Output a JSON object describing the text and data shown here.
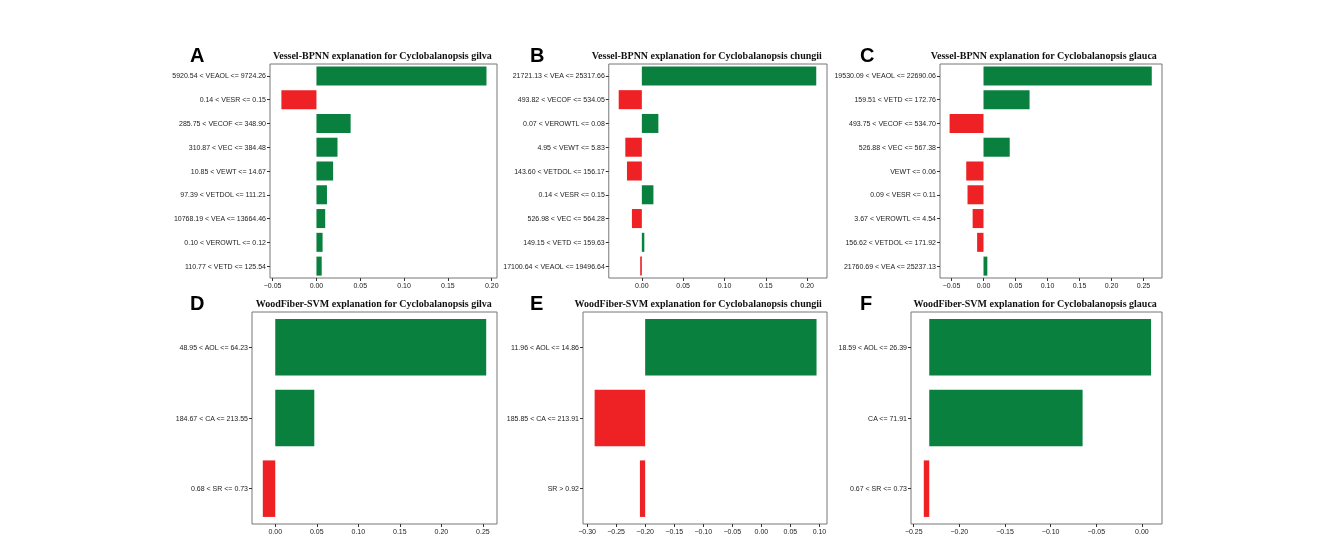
{
  "chart_data": [
    {
      "type": "bar",
      "orientation": "horizontal",
      "title": "Vessel-BPNN explanation for Cyclobalanopsis gilva",
      "annotations": [
        "A"
      ],
      "categories": [
        "5920.54 < VEAOL <= 9724.26",
        "0.14 < VESR <= 0.15",
        "285.75 < VECOF <= 348.90",
        "310.87 < VEC <= 384.48",
        "10.85 < VEWT <= 14.67",
        "97.39 < VETDOL <= 111.21",
        "10768.19 < VEA <= 13664.46",
        "0.10 < VEROWTL <= 0.12",
        "110.77 < VETD <= 125.54"
      ],
      "values": [
        0.194,
        -0.04,
        0.039,
        0.024,
        0.019,
        0.012,
        0.01,
        0.007,
        0.006
      ],
      "colors": [
        "#0a803f",
        "#ee2225",
        "#0a803f",
        "#0a803f",
        "#0a803f",
        "#0a803f",
        "#0a803f",
        "#0a803f",
        "#0a803f"
      ],
      "xlim": [
        -0.053,
        0.206
      ],
      "xticks": [
        {
          "value": -0.05,
          "label": "−0.05"
        },
        {
          "value": 0,
          "label": "0.00"
        },
        0.05,
        {
          "value": 0.1,
          "label": "0.10"
        },
        0.15,
        {
          "value": 0.2,
          "label": "0.20"
        }
      ],
      "grid": false
    },
    {
      "type": "bar",
      "orientation": "horizontal",
      "title": "Vessel-BPNN explanation for Cyclobalanopsis chungii",
      "annotations": [
        "B"
      ],
      "categories": [
        "21721.13 < VEA <= 25317.66",
        "493.82 < VECOF <= 534.05",
        "0.07 < VEROWTL <= 0.08",
        "4.95 < VEWT <= 5.83",
        "143.60 < VETDOL <= 156.17",
        "0.14 < VESR <= 0.15",
        "526.98 < VEC <= 564.28",
        "149.15 < VETD <= 159.63",
        "17100.64 < VEAOL <= 19496.64"
      ],
      "values": [
        0.211,
        -0.028,
        0.02,
        -0.02,
        -0.018,
        0.014,
        -0.012,
        0.003,
        -0.002
      ],
      "colors": [
        "#0a803f",
        "#ee2225",
        "#0a803f",
        "#ee2225",
        "#ee2225",
        "#0a803f",
        "#ee2225",
        "#0a803f",
        "#ee2225"
      ],
      "xlim": [
        -0.04,
        0.224
      ],
      "xticks": [
        {
          "value": 0,
          "label": "0.00"
        },
        0.05,
        {
          "value": 0.1,
          "label": "0.10"
        },
        0.15,
        {
          "value": 0.2,
          "label": "0.20"
        }
      ],
      "grid": false
    },
    {
      "type": "bar",
      "orientation": "horizontal",
      "title": "Vessel-BPNN explanation for Cyclobalanopsis glauca",
      "annotations": [
        "C"
      ],
      "categories": [
        "19530.09 < VEAOL <= 22690.06",
        "159.51 < VETD <= 172.76",
        "493.75 < VECOF <= 534.70",
        "526.88 < VEC <= 567.38",
        "VEWT <= 0.06",
        "0.09 < VESR <= 0.11",
        "3.67 < VEROWTL <= 4.54",
        "156.62 < VETDOL <= 171.92",
        "21760.69 < VEA <= 25237.13"
      ],
      "values": [
        0.263,
        0.072,
        -0.053,
        0.041,
        -0.027,
        -0.025,
        -0.017,
        -0.01,
        0.006
      ],
      "colors": [
        "#0a803f",
        "#0a803f",
        "#ee2225",
        "#0a803f",
        "#ee2225",
        "#ee2225",
        "#ee2225",
        "#ee2225",
        "#0a803f"
      ],
      "xlim": [
        -0.068,
        0.279
      ],
      "xticks": [
        {
          "value": -0.05,
          "label": "−0.05"
        },
        {
          "value": 0,
          "label": "0.00"
        },
        0.05,
        {
          "value": 0.1,
          "label": "0.10"
        },
        0.15,
        {
          "value": 0.2,
          "label": "0.20"
        },
        0.25
      ],
      "grid": false
    },
    {
      "type": "bar",
      "orientation": "horizontal",
      "title": "WoodFiber-SVM explanation for Cyclobalanopsis gilva",
      "annotations": [
        "D"
      ],
      "categories": [
        "48.95 < AOL <= 64.23",
        "184.67 < CA <= 213.55",
        "0.68 < SR <= 0.73"
      ],
      "values": [
        0.254,
        0.047,
        -0.015
      ],
      "colors": [
        "#0a803f",
        "#0a803f",
        "#ee2225"
      ],
      "xlim": [
        -0.028,
        0.267
      ],
      "xticks": [
        {
          "value": 0,
          "label": "0.00"
        },
        0.05,
        {
          "value": 0.1,
          "label": "0.10"
        },
        0.15,
        {
          "value": 0.2,
          "label": "0.20"
        },
        0.25
      ],
      "grid": false
    },
    {
      "type": "bar",
      "orientation": "horizontal",
      "title": "WoodFiber-SVM explanation for Cyclobalanopsis chungii",
      "annotations": [
        "E"
      ],
      "categories": [
        "11.96 < AOL <= 14.86",
        "185.85 < CA <= 213.91",
        "SR > 0.92"
      ],
      "values": [
        0.295,
        -0.087,
        -0.009
      ],
      "base": [
        -0.2,
        -0.2,
        -0.2
      ],
      "colors": [
        "#0a803f",
        "#ee2225",
        "#ee2225"
      ],
      "xlim": [
        -0.307,
        0.113
      ],
      "xticks": [
        {
          "value": -0.3,
          "label": "−0.30"
        },
        {
          "value": -0.25,
          "label": "−0.25"
        },
        {
          "value": -0.2,
          "label": "−0.20"
        },
        {
          "value": -0.15,
          "label": "−0.15"
        },
        {
          "value": -0.1,
          "label": "−0.10"
        },
        {
          "value": -0.05,
          "label": "−0.05"
        },
        {
          "value": 0,
          "label": "0.00"
        },
        0.05,
        {
          "value": 0.1,
          "label": "0.10"
        }
      ],
      "grid": false
    },
    {
      "type": "bar",
      "orientation": "horizontal",
      "title": "WoodFiber-SVM explanation for Cyclobalanopsis glauca",
      "annotations": [
        "F"
      ],
      "categories": [
        "18.59 < AOL <= 26.39",
        "CA <= 71.91",
        "0.67 < SR <= 0.73"
      ],
      "values": [
        0.243,
        0.168,
        -0.006
      ],
      "base": [
        -0.233,
        -0.233,
        -0.233
      ],
      "colors": [
        "#0a803f",
        "#0a803f",
        "#ee2225"
      ],
      "xlim": [
        -0.253,
        0.022
      ],
      "xticks": [
        {
          "value": -0.25,
          "label": "−0.25"
        },
        {
          "value": -0.2,
          "label": "−0.20"
        },
        {
          "value": -0.15,
          "label": "−0.15"
        },
        {
          "value": -0.1,
          "label": "−0.10"
        },
        {
          "value": -0.05,
          "label": "−0.05"
        },
        {
          "value": 0,
          "label": "0.00"
        }
      ],
      "grid": false
    }
  ]
}
